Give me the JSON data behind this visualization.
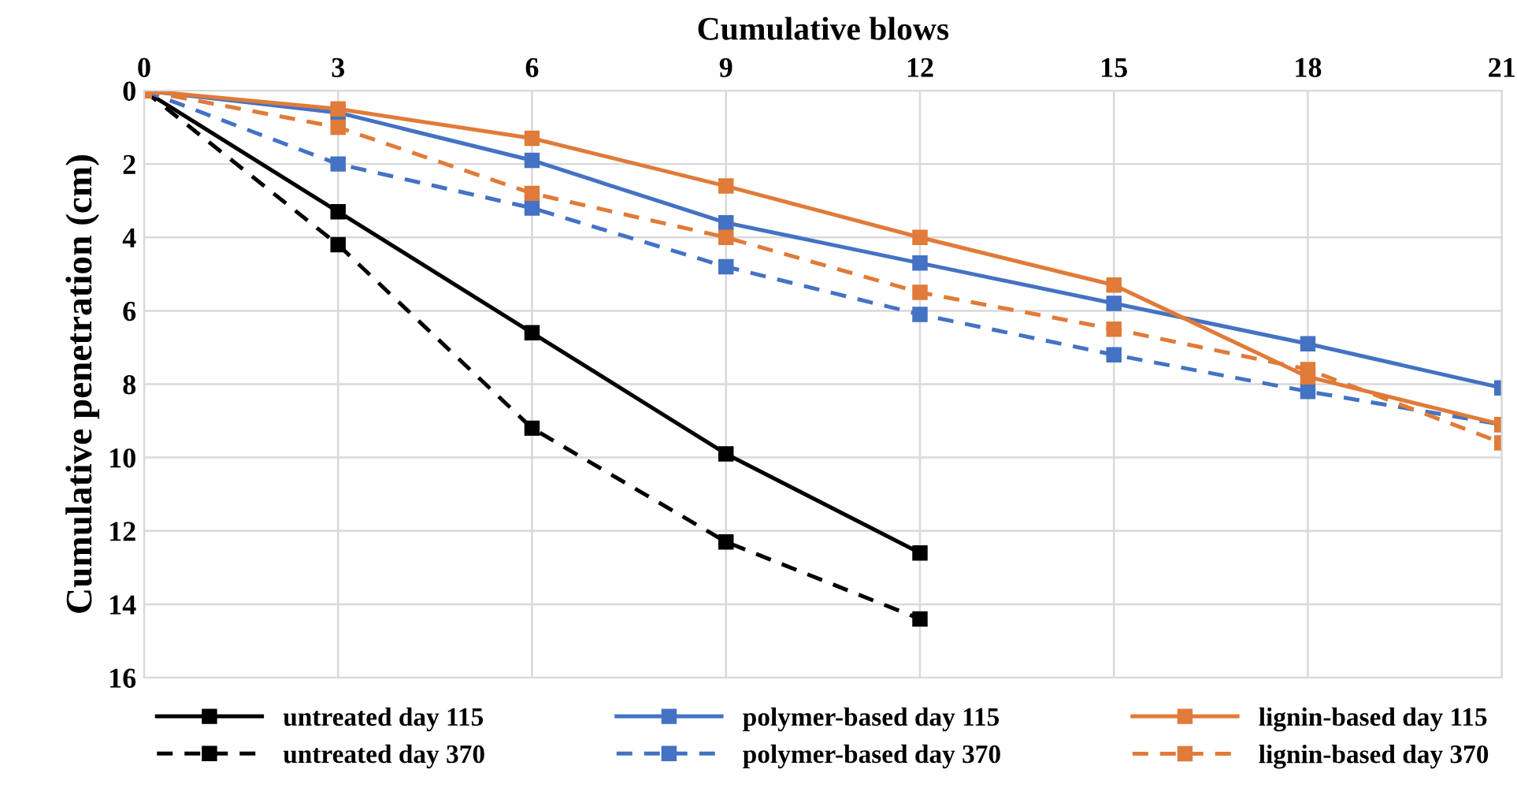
{
  "chart_data": {
    "type": "line",
    "xlabel": "Cumulative blows",
    "ylabel": "Cumulative penetration (cm)",
    "x": [
      0,
      3,
      6,
      9,
      12,
      15,
      18,
      21
    ],
    "xlim": [
      0,
      21
    ],
    "xticks": [
      0,
      3,
      6,
      9,
      12,
      15,
      18,
      21
    ],
    "ylim": [
      16,
      0
    ],
    "yticks": [
      0,
      2,
      4,
      6,
      8,
      10,
      12,
      14,
      16
    ],
    "grid": true,
    "legend": "bottom",
    "marker": "square",
    "series": [
      {
        "name": "untreated day 115",
        "color": "#000000",
        "line_style": "solid",
        "x": [
          0,
          3,
          6,
          9,
          12
        ],
        "values": [
          0,
          3.3,
          6.6,
          9.9,
          12.6
        ]
      },
      {
        "name": "untreated day 370",
        "color": "#000000",
        "line_style": "dashed",
        "x": [
          0,
          3,
          6,
          9,
          12
        ],
        "values": [
          0,
          4.2,
          9.2,
          12.3,
          14.4
        ]
      },
      {
        "name": "polymer-based day 115",
        "color": "#4472c4",
        "line_style": "solid",
        "values": [
          0,
          0.6,
          1.9,
          3.6,
          4.7,
          5.8,
          6.9,
          8.1
        ]
      },
      {
        "name": "polymer-based day 370",
        "color": "#4472c4",
        "line_style": "dashed",
        "values": [
          0,
          2.0,
          3.2,
          4.8,
          6.1,
          7.2,
          8.2,
          9.1
        ]
      },
      {
        "name": "lignin-based day 115",
        "color": "#e07b39",
        "line_style": "solid",
        "values": [
          0,
          0.5,
          1.3,
          2.6,
          4.0,
          5.3,
          7.8,
          9.1
        ]
      },
      {
        "name": "lignin-based day 370",
        "color": "#e07b39",
        "line_style": "dashed",
        "values": [
          0,
          1.0,
          2.8,
          4.0,
          5.5,
          6.5,
          7.6,
          9.6
        ]
      }
    ]
  }
}
